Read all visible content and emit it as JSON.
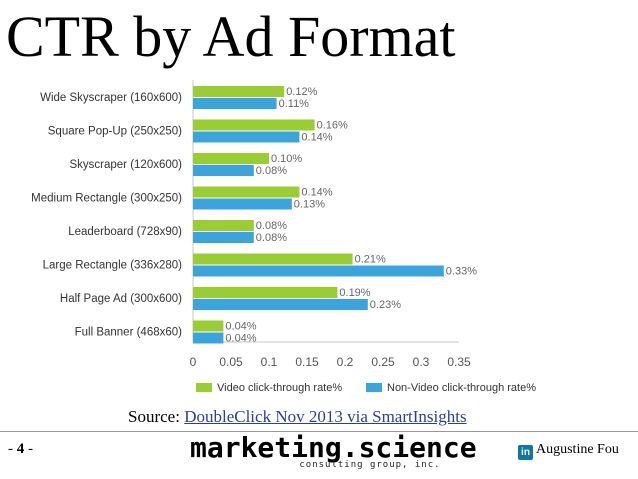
{
  "title": "CTR by Ad Format",
  "chart_data": {
    "type": "bar",
    "orientation": "horizontal",
    "categories": [
      "Wide Skyscraper (160x600)",
      "Square Pop-Up (250x250)",
      "Skyscraper (120x600)",
      "Medium Rectangle (300x250)",
      "Leaderboard (728x90)",
      "Large Rectangle (336x280)",
      "Half Page Ad (300x600)",
      "Full Banner (468x60)"
    ],
    "series": [
      {
        "name": "Video click-through rate%",
        "color": "#9acd32",
        "values": [
          0.12,
          0.16,
          0.1,
          0.14,
          0.08,
          0.21,
          0.19,
          0.04
        ],
        "labels": [
          "0.12%",
          "0.16%",
          "0.10%",
          "0.14%",
          "0.08%",
          "0.21%",
          "0.19%",
          "0.04%"
        ]
      },
      {
        "name": "Non-Video click-through rate%",
        "color": "#3ca4dc",
        "values": [
          0.11,
          0.14,
          0.08,
          0.13,
          0.08,
          0.33,
          0.23,
          0.04
        ],
        "labels": [
          "0.11%",
          "0.14%",
          "0.08%",
          "0.13%",
          "0.08%",
          "0.33%",
          "0.23%",
          "0.04%"
        ]
      }
    ],
    "xlim": [
      0,
      0.35
    ],
    "xticks": [
      "0",
      "0.05",
      "0.1",
      "0.15",
      "0.2",
      "0.25",
      "0.3",
      "0.35"
    ],
    "grid": false,
    "legend": "bottom"
  },
  "source": {
    "prefix": "Source: ",
    "link_text": "DoubleClick Nov 2013 via SmartInsights"
  },
  "footer": {
    "page_prefix": "- ",
    "page_number": "4",
    "page_suffix": " -",
    "logo_main": "marketing.science",
    "logo_sub": "consulting group, inc.",
    "linkedin_icon": "in",
    "author": "Augustine Fou"
  }
}
